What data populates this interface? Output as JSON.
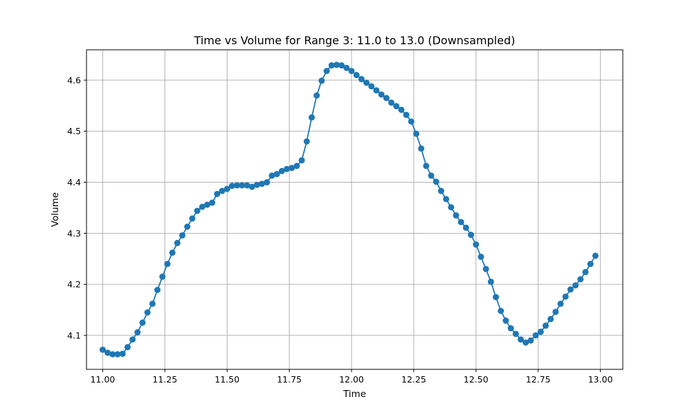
{
  "chart_data": {
    "type": "line",
    "title": "Time vs Volume for Range 3: 11.0 to 13.0 (Downsampled)",
    "xlabel": "Time",
    "ylabel": "Volume",
    "xlim": [
      10.935,
      13.09
    ],
    "ylim": [
      4.0335,
      4.6595
    ],
    "grid": true,
    "marker": "circle",
    "color": "#1f77b4",
    "xticks": [
      "11.00",
      "11.25",
      "11.50",
      "11.75",
      "12.00",
      "12.25",
      "12.50",
      "12.75",
      "13.00"
    ],
    "yticks": [
      "4.1",
      "4.2",
      "4.3",
      "4.4",
      "4.5",
      "4.6"
    ],
    "series": [
      {
        "x": [
          11.0,
          11.02,
          11.04,
          11.06,
          11.08,
          11.1,
          11.12,
          11.14,
          11.16,
          11.18,
          11.2,
          11.22,
          11.24,
          11.26,
          11.28,
          11.3,
          11.32,
          11.34,
          11.36,
          11.38,
          11.4,
          11.42,
          11.44,
          11.46,
          11.48,
          11.5,
          11.52,
          11.54,
          11.56,
          11.58,
          11.6,
          11.62,
          11.64,
          11.66,
          11.68,
          11.7,
          11.72,
          11.74,
          11.76,
          11.78,
          11.8,
          11.82,
          11.84,
          11.86,
          11.88,
          11.9,
          11.92,
          11.94,
          11.96,
          11.98,
          12.0,
          12.02,
          12.04,
          12.06,
          12.08,
          12.1,
          12.12,
          12.14,
          12.16,
          12.18,
          12.2,
          12.22,
          12.24,
          12.26,
          12.28,
          12.3,
          12.32,
          12.34,
          12.36,
          12.38,
          12.4,
          12.42,
          12.44,
          12.46,
          12.48,
          12.5,
          12.52,
          12.54,
          12.56,
          12.58,
          12.6,
          12.62,
          12.64,
          12.66,
          12.68,
          12.7,
          12.72,
          12.74,
          12.76,
          12.78,
          12.8,
          12.82,
          12.84,
          12.86,
          12.88,
          12.9,
          12.92,
          12.94,
          12.96,
          12.98
        ],
        "y": [
          4.072,
          4.066,
          4.063,
          4.063,
          4.064,
          4.077,
          4.092,
          4.106,
          4.125,
          4.145,
          4.162,
          4.189,
          4.215,
          4.24,
          4.262,
          4.281,
          4.296,
          4.313,
          4.329,
          4.344,
          4.352,
          4.356,
          4.36,
          4.377,
          4.383,
          4.387,
          4.393,
          4.394,
          4.394,
          4.394,
          4.391,
          4.395,
          4.397,
          4.4,
          4.413,
          4.416,
          4.422,
          4.426,
          4.428,
          4.432,
          4.443,
          4.48,
          4.527,
          4.57,
          4.599,
          4.618,
          4.629,
          4.63,
          4.629,
          4.624,
          4.618,
          4.61,
          4.602,
          4.595,
          4.588,
          4.58,
          4.572,
          4.565,
          4.556,
          4.549,
          4.542,
          4.532,
          4.519,
          4.495,
          4.466,
          4.432,
          4.413,
          4.401,
          4.383,
          4.367,
          4.351,
          4.335,
          4.322,
          4.311,
          4.297,
          4.278,
          4.254,
          4.23,
          4.205,
          4.175,
          4.148,
          4.129,
          4.114,
          4.103,
          4.092,
          4.086,
          4.09,
          4.1,
          4.107,
          4.119,
          4.132,
          4.146,
          4.162,
          4.176,
          4.19,
          4.198,
          4.21,
          4.224,
          4.24,
          4.256
        ]
      }
    ]
  }
}
